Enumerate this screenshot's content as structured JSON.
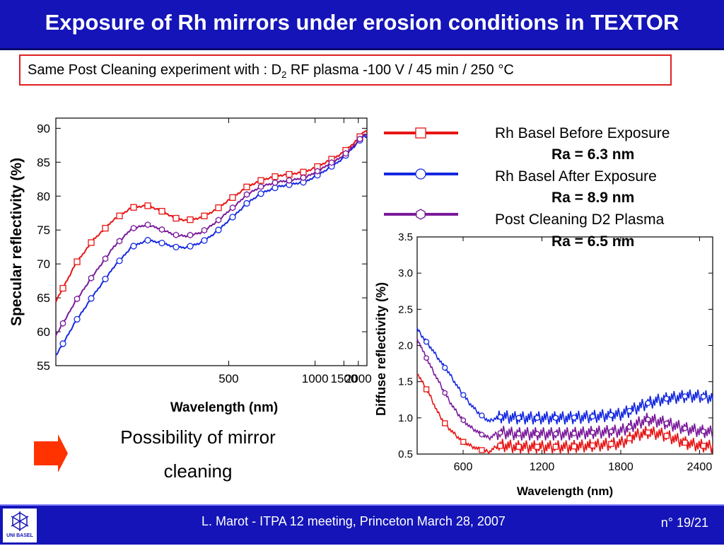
{
  "slide": {
    "title": "Exposure of Rh mirrors under erosion conditions in TEXTOR",
    "condition_prefix": "Same Post Cleaning experiment with : D",
    "condition_sub": "2",
    "condition_suffix": " RF plasma -100 V / 45 min / 250 °C",
    "conclusion_line1": "Possibility of mirror",
    "conclusion_line2": "cleaning",
    "footer_center": "L. Marot - ITPA 12 meeting, Princeton March 28, 2007",
    "footer_right": "n° 19/21",
    "logo_text": "UNI BASEL"
  },
  "legend": [
    {
      "label": "Rh Basel Before Exposure",
      "ra": "Ra = 6.3 nm",
      "color": "#e81414",
      "marker": "square"
    },
    {
      "label": "Rh Basel After Exposure",
      "ra": "Ra = 8.9 nm",
      "color": "#1428e0",
      "marker": "circle"
    },
    {
      "label": "Post Cleaning D2 Plasma",
      "ra": "Ra = 6.5 nm",
      "color": "#7a1a9a",
      "marker": "hexagon"
    }
  ],
  "chart_data": [
    {
      "type": "line",
      "title": "",
      "xlabel": "Wavelength (nm)",
      "ylabel": "Specular reflectivity (%)",
      "x_scale": "reciprocal",
      "xlim": [
        250,
        2500
      ],
      "ylim": [
        55,
        91.5
      ],
      "x_ticks": [
        "500",
        "1000",
        "1500",
        "2000"
      ],
      "y_ticks": [
        "55",
        "60",
        "65",
        "70",
        "75",
        "80",
        "85",
        "90"
      ],
      "series": [
        {
          "name": "Rh Basel Before Exposure",
          "x": [
            250,
            265,
            280,
            300,
            320,
            340,
            360,
            380,
            400,
            430,
            460,
            500,
            560,
            620,
            700,
            800,
            900,
            1000,
            1200,
            1400,
            1700,
            2000,
            2300,
            2500
          ],
          "values": [
            64.5,
            70,
            73.5,
            76.5,
            78.3,
            78.6,
            77.8,
            76.8,
            76.4,
            76.8,
            77.8,
            79.4,
            81.4,
            82.4,
            83.0,
            83.3,
            83.6,
            84.2,
            85.3,
            86.1,
            87.4,
            88.5,
            89.5,
            89.6
          ]
        },
        {
          "name": "Rh Basel After Exposure",
          "x": [
            250,
            265,
            280,
            300,
            320,
            340,
            360,
            380,
            400,
            430,
            460,
            500,
            560,
            620,
            700,
            800,
            900,
            1000,
            1200,
            1400,
            1700,
            2000,
            2300,
            2500
          ],
          "values": [
            56.5,
            61.5,
            65.3,
            69.5,
            72.5,
            73.5,
            73.1,
            72.5,
            72.4,
            73.1,
            74.4,
            76.4,
            79.0,
            80.5,
            81.4,
            81.8,
            82.1,
            82.9,
            84.2,
            85.2,
            86.8,
            88.0,
            88.9,
            88.6
          ]
        },
        {
          "name": "Post Cleaning D2 Plasma",
          "x": [
            250,
            265,
            280,
            300,
            320,
            340,
            360,
            380,
            400,
            430,
            460,
            500,
            560,
            620,
            700,
            800,
            900,
            1000,
            1200,
            1400,
            1700,
            2000,
            2300,
            2500
          ],
          "values": [
            59.5,
            64.5,
            68.3,
            72.5,
            75.2,
            75.8,
            75.1,
            74.3,
            74.1,
            74.6,
            75.9,
            77.8,
            80.3,
            81.5,
            82.1,
            82.4,
            82.8,
            83.5,
            84.8,
            85.6,
            87.0,
            88.2,
            89.1,
            88.9
          ]
        }
      ]
    },
    {
      "type": "line",
      "title": "",
      "xlabel": "Wavelength (nm)",
      "ylabel": "Diffuse reflectivity (%)",
      "xlim": [
        250,
        2500
      ],
      "ylim": [
        0.5,
        3.5
      ],
      "x_ticks": [
        "600",
        "1200",
        "1800",
        "2400"
      ],
      "y_ticks": [
        "0.5",
        "1.0",
        "1.5",
        "2.0",
        "2.5",
        "3.0",
        "3.5"
      ],
      "series": [
        {
          "name": "Rh Basel Before Exposure",
          "x": [
            250,
            300,
            350,
            400,
            450,
            500,
            550,
            600,
            650,
            700,
            750,
            800,
            850,
            900,
            1000,
            1200,
            1400,
            1600,
            1800,
            1900,
            2000,
            2100,
            2200,
            2300,
            2400,
            2500
          ],
          "values": [
            1.62,
            1.46,
            1.3,
            1.1,
            0.95,
            0.84,
            0.75,
            0.67,
            0.62,
            0.58,
            0.55,
            0.53,
            0.6,
            0.62,
            0.6,
            0.6,
            0.6,
            0.62,
            0.65,
            0.75,
            0.8,
            0.78,
            0.72,
            0.65,
            0.62,
            0.6
          ]
        },
        {
          "name": "Rh Basel After Exposure",
          "x": [
            250,
            300,
            350,
            400,
            450,
            500,
            550,
            600,
            650,
            700,
            750,
            800,
            850,
            900,
            1000,
            1200,
            1400,
            1600,
            1800,
            1900,
            2000,
            2100,
            2200,
            2300,
            2400,
            2500
          ],
          "values": [
            2.23,
            2.1,
            1.98,
            1.85,
            1.72,
            1.6,
            1.45,
            1.32,
            1.2,
            1.1,
            1.02,
            0.95,
            1.0,
            1.02,
            1.0,
            1.0,
            1.0,
            1.02,
            1.05,
            1.12,
            1.2,
            1.25,
            1.28,
            1.3,
            1.3,
            1.28
          ]
        },
        {
          "name": "Post Cleaning D2 Plasma",
          "x": [
            250,
            300,
            350,
            400,
            450,
            500,
            550,
            600,
            650,
            700,
            750,
            800,
            850,
            900,
            1000,
            1200,
            1400,
            1600,
            1800,
            1900,
            2000,
            2100,
            2200,
            2300,
            2400,
            2500
          ],
          "values": [
            2.1,
            1.9,
            1.72,
            1.55,
            1.38,
            1.22,
            1.08,
            0.97,
            0.88,
            0.82,
            0.76,
            0.72,
            0.78,
            0.8,
            0.78,
            0.78,
            0.78,
            0.8,
            0.82,
            0.9,
            0.98,
            0.95,
            0.9,
            0.85,
            0.82,
            0.8
          ]
        }
      ]
    }
  ]
}
